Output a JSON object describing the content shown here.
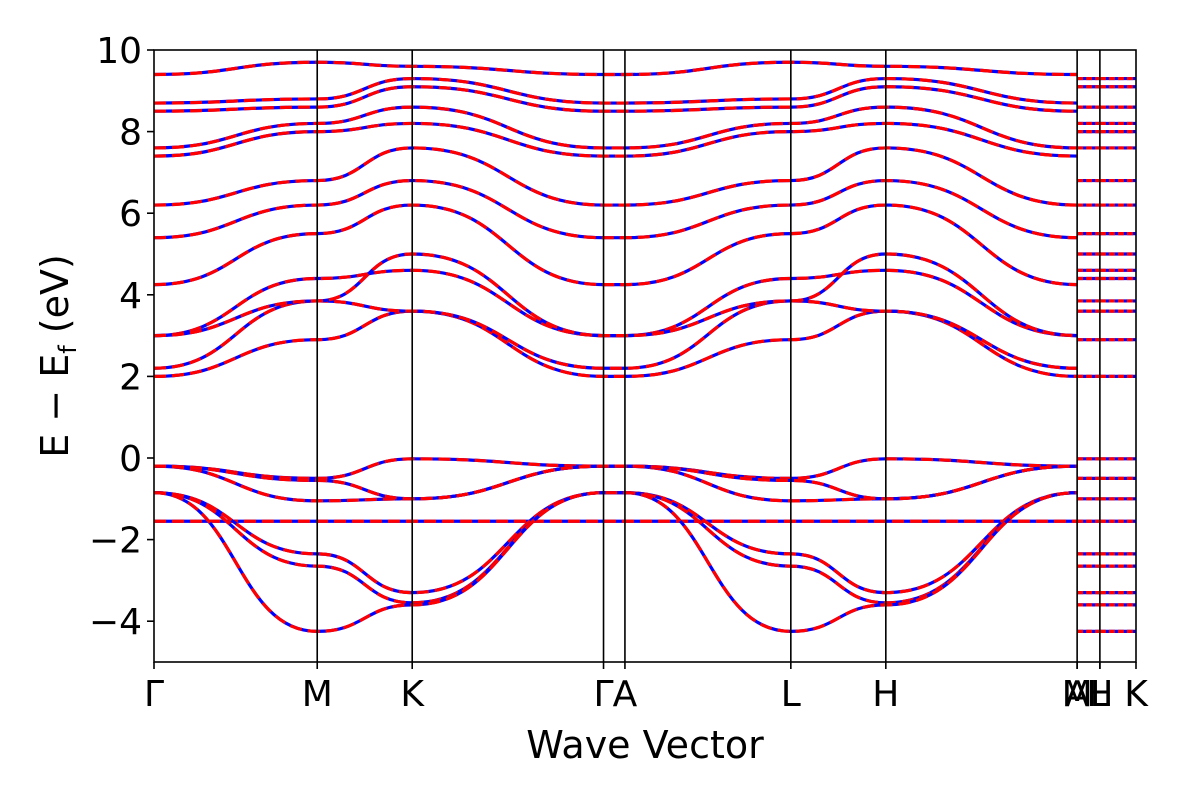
{
  "chart_data": {
    "type": "line",
    "title": "",
    "xlabel": "Wave Vector",
    "ylabel_main": "E − E",
    "ylabel_sub": "f",
    "ylabel_unit": " (eV)",
    "ylim": [
      -5,
      10
    ],
    "yticks": [
      -4,
      -2,
      0,
      2,
      4,
      6,
      8,
      10
    ],
    "ytick_labels": [
      "−4",
      "−2",
      "0",
      "2",
      "4",
      "6",
      "8",
      "10"
    ],
    "grid": false,
    "xlim": [
      0,
      7.34
    ],
    "kpoints": [
      {
        "label": "Γ",
        "x": 0
      },
      {
        "label": "M",
        "x": 1.22
      },
      {
        "label": "K",
        "x": 1.93
      },
      {
        "label": "Γ",
        "x": 3.36
      },
      {
        "label": "A",
        "x": 3.52
      },
      {
        "label": "L",
        "x": 4.76
      },
      {
        "label": "H",
        "x": 5.47
      },
      {
        "label": "A",
        "x": 6.9
      },
      {
        "label": "M",
        "x": 6.9
      },
      {
        "label": "L",
        "x": 7.07
      },
      {
        "label": "H",
        "x": 7.07
      },
      {
        "label": "K",
        "x": 7.34
      }
    ],
    "series_styles": [
      {
        "color": "#0000ff",
        "style": "solid"
      },
      {
        "color": "#ff0000",
        "style": "dashed"
      }
    ],
    "bands": [
      {
        "y": [
          -1.55,
          -1.55,
          -1.55,
          -1.55,
          -1.55,
          -1.55,
          -1.55,
          -1.55
        ]
      },
      {
        "y": [
          -0.85,
          -2.35,
          -3.3,
          -0.85,
          -0.85,
          -2.35,
          -3.3,
          -0.85
        ]
      },
      {
        "y": [
          -0.85,
          -2.65,
          -3.55,
          -0.85,
          -0.85,
          -2.65,
          -3.55,
          -0.85
        ]
      },
      {
        "y": [
          -0.85,
          -4.25,
          -3.6,
          -0.85,
          -0.85,
          -4.25,
          -3.6,
          -0.85
        ]
      },
      {
        "y": [
          -0.2,
          -1.05,
          -1.0,
          -0.2,
          -0.2,
          -1.05,
          -1.0,
          -0.2
        ]
      },
      {
        "y": [
          -0.2,
          -0.5,
          -0.02,
          -0.2,
          -0.2,
          -0.5,
          -0.02,
          -0.2
        ]
      },
      {
        "y": [
          -0.2,
          -0.55,
          -1.0,
          -0.2,
          -0.2,
          -0.55,
          -1.0,
          -0.2
        ]
      },
      {
        "y": [
          2.0,
          2.9,
          3.6,
          2.0,
          2.0,
          2.9,
          3.6,
          2.0
        ]
      },
      {
        "y": [
          2.2,
          3.85,
          3.6,
          2.2,
          2.2,
          3.85,
          3.6,
          2.2
        ]
      },
      {
        "y": [
          3.0,
          4.4,
          4.6,
          3.0,
          3.0,
          4.4,
          4.6,
          3.0
        ]
      },
      {
        "y": [
          3.0,
          3.85,
          5.0,
          3.0,
          3.0,
          3.85,
          5.0,
          3.0
        ]
      },
      {
        "y": [
          4.25,
          5.5,
          6.2,
          4.25,
          4.25,
          5.5,
          6.2,
          4.25
        ]
      },
      {
        "y": [
          5.4,
          6.2,
          6.8,
          5.4,
          5.4,
          6.2,
          6.8,
          5.4
        ]
      },
      {
        "y": [
          6.2,
          6.8,
          7.6,
          6.2,
          6.2,
          6.8,
          7.6,
          6.2
        ]
      },
      {
        "y": [
          7.4,
          8.0,
          8.2,
          7.4,
          7.4,
          8.0,
          8.2,
          7.4
        ]
      },
      {
        "y": [
          7.6,
          8.2,
          8.6,
          7.6,
          7.6,
          8.2,
          8.6,
          7.6
        ]
      },
      {
        "y": [
          8.5,
          8.6,
          9.1,
          8.5,
          8.5,
          8.6,
          9.1,
          8.5
        ]
      },
      {
        "y": [
          8.7,
          8.8,
          9.3,
          8.7,
          8.7,
          8.8,
          9.3,
          8.7
        ]
      },
      {
        "y": [
          9.4,
          9.7,
          9.6,
          9.4,
          9.4,
          9.7,
          9.6,
          9.4
        ]
      }
    ],
    "segment_x": [
      0,
      1.22,
      1.93,
      3.36,
      3.52,
      4.76,
      5.47,
      6.9
    ],
    "tail_levels": [
      -4.25,
      -3.6,
      -3.3,
      -2.65,
      -2.35,
      -1.55,
      -1.0,
      -0.5,
      -0.02,
      2.0,
      2.9,
      3.6,
      3.85,
      4.4,
      4.6,
      5.0,
      5.5,
      6.2,
      6.8,
      7.6,
      8.0,
      8.2,
      8.6,
      9.1,
      9.3
    ]
  }
}
